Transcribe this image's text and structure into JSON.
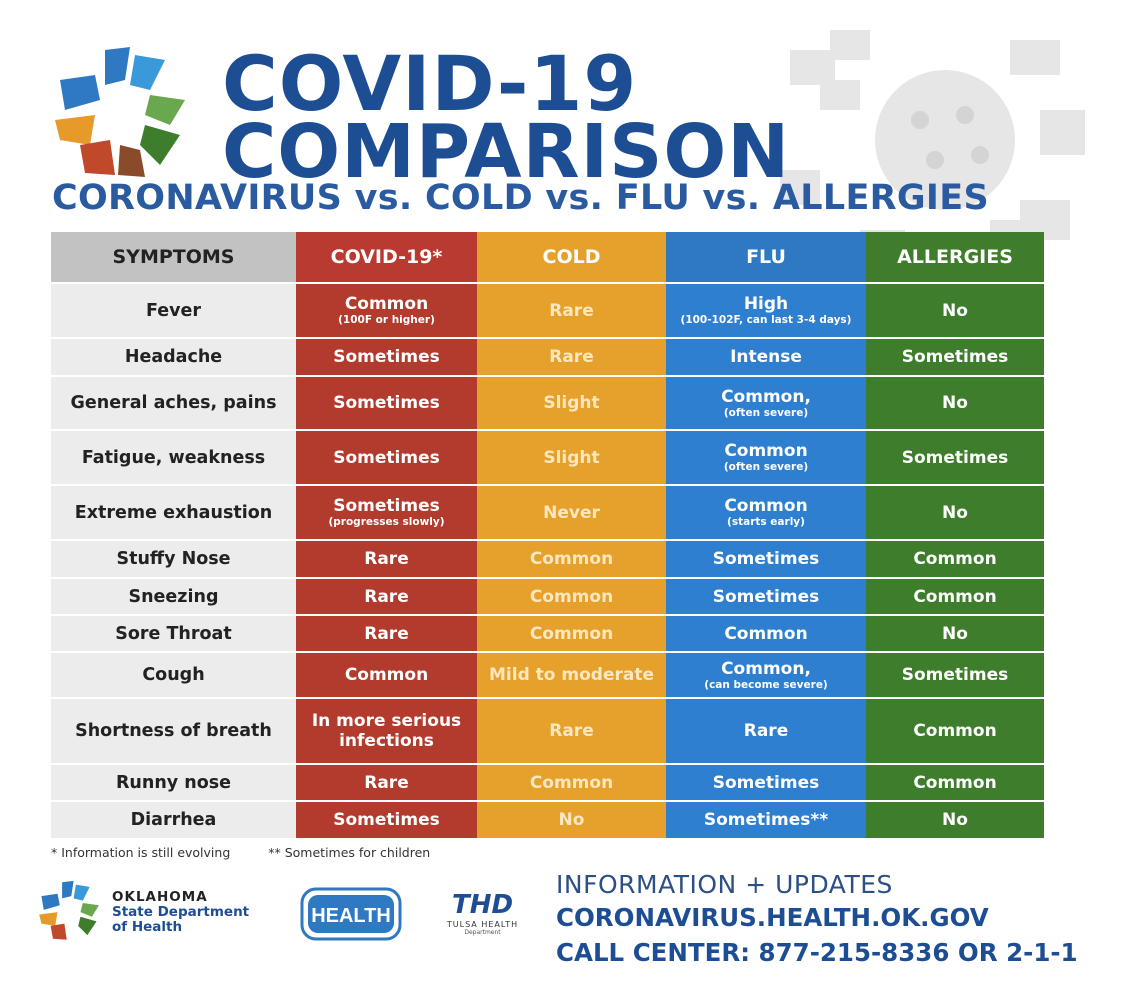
{
  "header": {
    "title_line1": "COVID-19",
    "title_line2": "COMPARISON",
    "subtitle": "CORONAVIRUS vs. COLD vs. FLU vs. ALLERGIES"
  },
  "table": {
    "headers": [
      "SYMPTOMS",
      "COVID-19*",
      "COLD",
      "FLU",
      "ALLERGIES"
    ],
    "rows": [
      {
        "symptom": "Fever",
        "covid": "Common",
        "covid_note": "(100F or higher)",
        "cold": "Rare",
        "cold_note": "",
        "flu": "High",
        "flu_note": "(100-102F, can last 3-4 days)",
        "allergies": "No"
      },
      {
        "symptom": "Headache",
        "covid": "Sometimes",
        "covid_note": "",
        "cold": "Rare",
        "cold_note": "",
        "flu": "Intense",
        "flu_note": "",
        "allergies": "Sometimes"
      },
      {
        "symptom": "General aches, pains",
        "covid": "Sometimes",
        "covid_note": "",
        "cold": "Slight",
        "cold_note": "",
        "flu": "Common,",
        "flu_note": "(often severe)",
        "allergies": "No"
      },
      {
        "symptom": "Fatigue, weakness",
        "covid": "Sometimes",
        "covid_note": "",
        "cold": "Slight",
        "cold_note": "",
        "flu": "Common",
        "flu_note": "(often severe)",
        "allergies": "Sometimes"
      },
      {
        "symptom": "Extreme exhaustion",
        "covid": "Sometimes",
        "covid_note": "(progresses slowly)",
        "cold": "Never",
        "cold_note": "",
        "flu": "Common",
        "flu_note": "(starts early)",
        "allergies": "No"
      },
      {
        "symptom": "Stuffy Nose",
        "covid": "Rare",
        "covid_note": "",
        "cold": "Common",
        "cold_note": "",
        "flu": "Sometimes",
        "flu_note": "",
        "allergies": "Common"
      },
      {
        "symptom": "Sneezing",
        "covid": "Rare",
        "covid_note": "",
        "cold": "Common",
        "cold_note": "",
        "flu": "Sometimes",
        "flu_note": "",
        "allergies": "Common"
      },
      {
        "symptom": "Sore Throat",
        "covid": "Rare",
        "covid_note": "",
        "cold": "Common",
        "cold_note": "",
        "flu": "Common",
        "flu_note": "",
        "allergies": "No"
      },
      {
        "symptom": "Cough",
        "covid": "Common",
        "covid_note": "",
        "cold": "Mild to moderate",
        "cold_note": "",
        "flu": "Common,",
        "flu_note": "(can become severe)",
        "allergies": "Sometimes"
      },
      {
        "symptom": "Shortness of breath",
        "covid": "In more serious",
        "covid_note": "infections",
        "cold": "Rare",
        "cold_note": "",
        "flu": "Rare",
        "flu_note": "",
        "allergies": "Common"
      },
      {
        "symptom": "Runny nose",
        "covid": "Rare",
        "covid_note": "",
        "cold": "Common",
        "cold_note": "",
        "flu": "Sometimes",
        "flu_note": "",
        "allergies": "Common"
      },
      {
        "symptom": "Diarrhea",
        "covid": "Sometimes",
        "covid_note": "",
        "cold": "No",
        "cold_note": "",
        "flu": "Sometimes**",
        "flu_note": "",
        "allergies": "No"
      }
    ]
  },
  "footnotes": {
    "note1": "* Information is still evolving",
    "note2": "** Sometimes for children"
  },
  "footer": {
    "ok_line1": "OKLAHOMA",
    "ok_line2": "State Department",
    "ok_line3": "of Health",
    "health_badge": "HEALTH",
    "thd_abbr": "THD",
    "thd_line2": "TULSA HEALTH",
    "thd_line3": "Department",
    "info_line1": "INFORMATION + UPDATES",
    "info_line2": "CORONAVIRUS.HEALTH.OK.GOV",
    "info_line3": "CALL CENTER: 877-215-8336 OR 2-1-1"
  },
  "colors": {
    "covid": "#b23b2e",
    "cold": "#e6a12c",
    "flu": "#2f7fd0",
    "allergies": "#3e7d2b",
    "title": "#1d4e94"
  }
}
